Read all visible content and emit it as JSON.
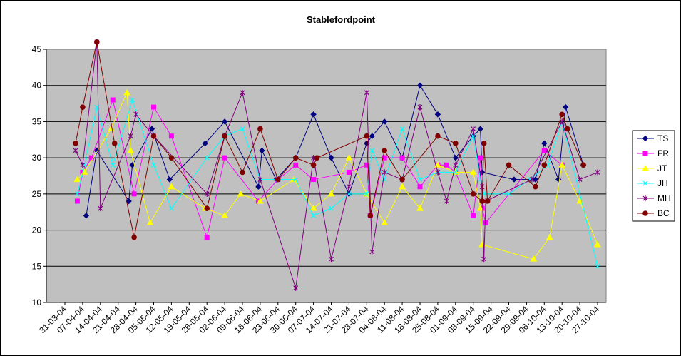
{
  "chart_data": {
    "type": "line",
    "title": "Stablefordpoint",
    "xlabel": "",
    "ylabel": "",
    "ylim": [
      10,
      45
    ],
    "yticks": [
      10,
      15,
      20,
      25,
      30,
      35,
      40,
      45
    ],
    "grid": "horizontal",
    "legend_position": "right",
    "x_range": [
      0,
      30
    ],
    "x_tick_labels": [
      "31-03-04",
      "07-04-04",
      "14-04-04",
      "21-04-04",
      "28-04-04",
      "05-05-04",
      "12-05-04",
      "19-05-04",
      "26-05-04",
      "02-06-04",
      "09-06-04",
      "16-06-04",
      "23-06-04",
      "30-06-04",
      "07-07-04",
      "14-07-04",
      "21-07-04",
      "28-07-04",
      "04-08-04",
      "11-08-04",
      "18-08-04",
      "25-08-04",
      "01-09-04",
      "08-09-04",
      "15-09-04",
      "22-09-04",
      "29-09-04",
      "06-10-04",
      "13-10-04",
      "20-10-04",
      "27-10-04"
    ],
    "series": [
      {
        "name": "TS",
        "color": "#000080",
        "marker": "diamond",
        "points": [
          [
            1.2,
            22
          ],
          [
            1.8,
            31
          ],
          [
            3.6,
            24
          ],
          [
            3.8,
            29
          ],
          [
            4.9,
            34
          ],
          [
            5.9,
            27
          ],
          [
            7.9,
            32
          ],
          [
            9.0,
            35
          ],
          [
            10.9,
            26
          ],
          [
            11.1,
            31
          ],
          [
            11.9,
            27
          ],
          [
            13.0,
            30
          ],
          [
            14.0,
            36
          ],
          [
            15.0,
            30
          ],
          [
            16.0,
            25
          ],
          [
            17.0,
            32
          ],
          [
            17.3,
            33
          ],
          [
            18.0,
            35
          ],
          [
            19.0,
            30
          ],
          [
            20.0,
            40
          ],
          [
            21.0,
            36
          ],
          [
            22.0,
            30
          ],
          [
            23.0,
            33
          ],
          [
            23.4,
            34
          ],
          [
            23.5,
            28
          ],
          [
            25.3,
            27
          ],
          [
            26.5,
            27
          ],
          [
            27.0,
            32
          ],
          [
            27.8,
            27
          ],
          [
            28.2,
            37
          ],
          [
            29.2,
            29
          ]
        ]
      },
      {
        "name": "FR",
        "color": "#FF00FF",
        "marker": "square",
        "points": [
          [
            0.7,
            24
          ],
          [
            1.0,
            28
          ],
          [
            1.5,
            30
          ],
          [
            2.7,
            38
          ],
          [
            3.9,
            25
          ],
          [
            5.0,
            37
          ],
          [
            6.0,
            33
          ],
          [
            8.0,
            19
          ],
          [
            9.0,
            30
          ],
          [
            10.9,
            24
          ],
          [
            12.0,
            27
          ],
          [
            13.0,
            29
          ],
          [
            14.0,
            27
          ],
          [
            16.0,
            28
          ],
          [
            17.0,
            29
          ],
          [
            17.2,
            22
          ],
          [
            18.0,
            30
          ],
          [
            19.0,
            30
          ],
          [
            20.0,
            26
          ],
          [
            21.0,
            29
          ],
          [
            21.5,
            29
          ],
          [
            22.0,
            28
          ],
          [
            23.0,
            22
          ],
          [
            23.4,
            30
          ],
          [
            23.5,
            23
          ],
          [
            23.7,
            21
          ],
          [
            27.0,
            31
          ],
          [
            28.0,
            29
          ]
        ]
      },
      {
        "name": "JT",
        "color": "#FFFF00",
        "marker": "triangle",
        "points": [
          [
            0.7,
            27
          ],
          [
            1.1,
            28
          ],
          [
            2.6,
            34
          ],
          [
            3.5,
            39
          ],
          [
            3.7,
            31
          ],
          [
            4.8,
            21
          ],
          [
            6.0,
            26
          ],
          [
            7.9,
            23
          ],
          [
            9.0,
            22
          ],
          [
            9.9,
            25
          ],
          [
            11.0,
            24
          ],
          [
            12.9,
            27
          ],
          [
            14.0,
            23
          ],
          [
            15.0,
            25
          ],
          [
            16.0,
            30
          ],
          [
            17.0,
            25
          ],
          [
            18.0,
            21
          ],
          [
            19.0,
            26
          ],
          [
            20.0,
            23
          ],
          [
            21.0,
            29
          ],
          [
            22.0,
            28
          ],
          [
            23.0,
            28
          ],
          [
            23.4,
            23
          ],
          [
            23.5,
            18
          ],
          [
            26.4,
            16
          ],
          [
            27.3,
            19
          ],
          [
            28.0,
            29
          ],
          [
            29.0,
            24
          ],
          [
            30.0,
            18
          ]
        ]
      },
      {
        "name": "JH",
        "color": "#00FFFF",
        "marker": "x",
        "points": [
          [
            0.7,
            25
          ],
          [
            1.1,
            29
          ],
          [
            1.8,
            37
          ],
          [
            2.7,
            29
          ],
          [
            3.8,
            38
          ],
          [
            5.0,
            29
          ],
          [
            6.0,
            23
          ],
          [
            8.0,
            30
          ],
          [
            9.0,
            33
          ],
          [
            10.0,
            34
          ],
          [
            11.0,
            27
          ],
          [
            12.0,
            27
          ],
          [
            13.0,
            27
          ],
          [
            14.0,
            22
          ],
          [
            15.0,
            23
          ],
          [
            16.0,
            25
          ],
          [
            17.0,
            25
          ],
          [
            17.3,
            31
          ],
          [
            18.0,
            27
          ],
          [
            19.0,
            34
          ],
          [
            20.0,
            27
          ],
          [
            21.0,
            28
          ],
          [
            22.0,
            28
          ],
          [
            23.0,
            33
          ],
          [
            23.4,
            27
          ],
          [
            23.6,
            25
          ],
          [
            25.0,
            25
          ],
          [
            26.2,
            27
          ],
          [
            27.2,
            29
          ],
          [
            28.0,
            35
          ],
          [
            30.0,
            15
          ]
        ]
      },
      {
        "name": "MH",
        "color": "#800080",
        "marker": "star",
        "points": [
          [
            0.6,
            31
          ],
          [
            1.0,
            29
          ],
          [
            1.8,
            46
          ],
          [
            2.0,
            23
          ],
          [
            3.7,
            33
          ],
          [
            4.0,
            36
          ],
          [
            5.0,
            33
          ],
          [
            8.0,
            25
          ],
          [
            9.0,
            33
          ],
          [
            10.0,
            39
          ],
          [
            11.0,
            27
          ],
          [
            13.0,
            12
          ],
          [
            14.0,
            30
          ],
          [
            15.0,
            16
          ],
          [
            16.0,
            26
          ],
          [
            17.0,
            39
          ],
          [
            17.3,
            17
          ],
          [
            18.0,
            28
          ],
          [
            19.0,
            27
          ],
          [
            20.0,
            37
          ],
          [
            21.0,
            28
          ],
          [
            21.5,
            24
          ],
          [
            22.0,
            29
          ],
          [
            23.0,
            34
          ],
          [
            23.5,
            26
          ],
          [
            23.6,
            16
          ],
          [
            23.7,
            24
          ],
          [
            26.3,
            27
          ],
          [
            28.0,
            35
          ],
          [
            29.0,
            27
          ],
          [
            30.0,
            28
          ]
        ]
      },
      {
        "name": "BC",
        "color": "#800000",
        "marker": "circle",
        "points": [
          [
            0.6,
            32
          ],
          [
            1.0,
            37
          ],
          [
            1.8,
            46
          ],
          [
            2.8,
            32
          ],
          [
            3.9,
            19
          ],
          [
            5.0,
            33
          ],
          [
            6.0,
            30
          ],
          [
            8.0,
            23
          ],
          [
            9.0,
            33
          ],
          [
            10.0,
            28
          ],
          [
            11.0,
            34
          ],
          [
            12.0,
            27
          ],
          [
            13.0,
            30
          ],
          [
            14.0,
            29
          ],
          [
            14.2,
            30
          ],
          [
            17.0,
            33
          ],
          [
            17.2,
            22
          ],
          [
            18.0,
            31
          ],
          [
            19.0,
            27
          ],
          [
            21.0,
            33
          ],
          [
            22.0,
            32
          ],
          [
            23.0,
            25
          ],
          [
            23.5,
            24
          ],
          [
            23.6,
            32
          ],
          [
            23.8,
            24
          ],
          [
            25.0,
            29
          ],
          [
            26.5,
            26
          ],
          [
            27.0,
            29
          ],
          [
            28.0,
            36
          ],
          [
            28.3,
            34
          ],
          [
            29.2,
            29
          ]
        ]
      }
    ]
  }
}
